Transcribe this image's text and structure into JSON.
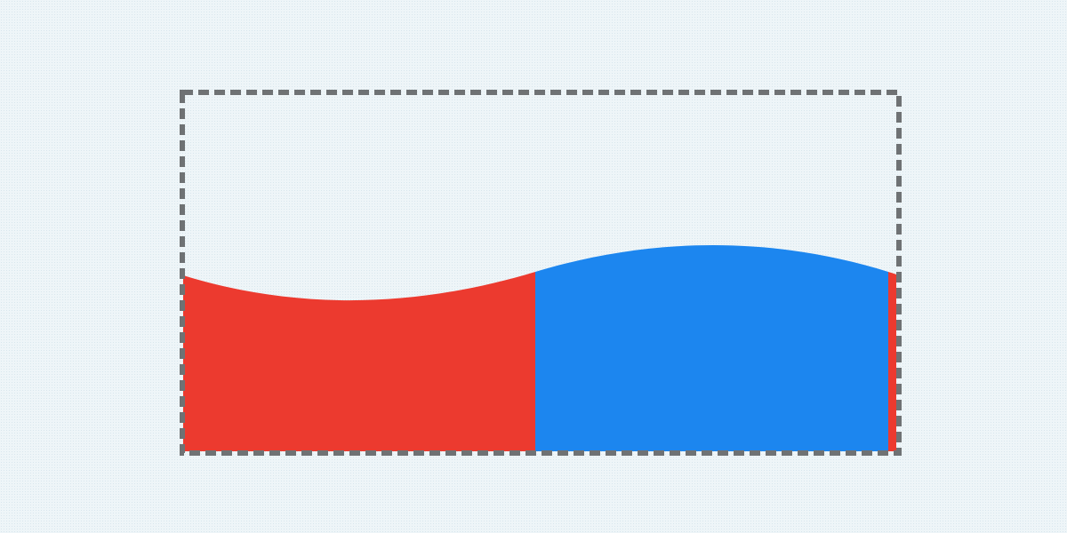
{
  "scene": {
    "background_color": "#eef5f8",
    "frame": {
      "style": "dashed",
      "color": "#6f7274"
    },
    "wave": {
      "description_shape": "two-tone sine wave fill",
      "segments": [
        {
          "name": "left-wave-segment",
          "color": "#ec3a2f"
        },
        {
          "name": "right-wave-segment",
          "color": "#1c86ef"
        },
        {
          "name": "edge-wave-sliver",
          "color": "#ec3a2f"
        }
      ]
    }
  }
}
